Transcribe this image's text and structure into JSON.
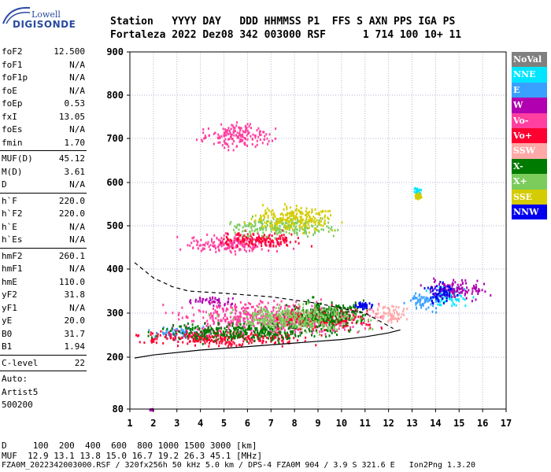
{
  "logo": {
    "line1": "Lowell",
    "line2": "DIGISONDE"
  },
  "header": {
    "line1": "Station   YYYY DAY   DDD HHMMSS P1  FFS S AXN PPS IGA PS",
    "line2": "Fortaleza 2022 Dez08 342 003000 RSF      1 714 100 10+ 11"
  },
  "params": [
    {
      "label": "foF2",
      "value": "12.500"
    },
    {
      "label": "foF1",
      "value": "N/A"
    },
    {
      "label": "foF1p",
      "value": "N/A"
    },
    {
      "label": "foE",
      "value": "N/A"
    },
    {
      "label": "foEp",
      "value": "0.53"
    },
    {
      "label": "fxI",
      "value": "13.05"
    },
    {
      "label": "foEs",
      "value": "N/A"
    },
    {
      "label": "fmin",
      "value": "1.70"
    },
    {
      "sep": true
    },
    {
      "label": "MUF(D)",
      "value": "45.12"
    },
    {
      "label": "M(D)",
      "value": "3.61"
    },
    {
      "label": "D",
      "value": "N/A"
    },
    {
      "sep": true
    },
    {
      "label": "h`F",
      "value": "220.0"
    },
    {
      "label": "h`F2",
      "value": "220.0"
    },
    {
      "label": "h`E",
      "value": "N/A"
    },
    {
      "label": "h`Es",
      "value": "N/A"
    },
    {
      "sep": true
    },
    {
      "label": "hmF2",
      "value": "260.1"
    },
    {
      "label": "hmF1",
      "value": "N/A"
    },
    {
      "label": "hmE",
      "value": "110.0"
    },
    {
      "label": "yF2",
      "value": "31.8"
    },
    {
      "label": "yF1",
      "value": "N/A"
    },
    {
      "label": "yE",
      "value": "20.0"
    },
    {
      "label": "B0",
      "value": "31.7"
    },
    {
      "label": "B1",
      "value": "1.94"
    },
    {
      "sep": true
    },
    {
      "label": "C-level",
      "value": "22"
    },
    {
      "sep": true
    },
    {
      "text": "Auto:"
    },
    {
      "text": "Artist5"
    },
    {
      "text": "500200"
    }
  ],
  "legend": [
    {
      "label": "NoVal",
      "color": "#808080"
    },
    {
      "label": "NNE",
      "color": "#00e5ff"
    },
    {
      "label": "E",
      "color": "#3aa0ff"
    },
    {
      "label": "W",
      "color": "#b000b0"
    },
    {
      "label": "Vo-",
      "color": "#ff40a0"
    },
    {
      "label": "Vo+",
      "color": "#ff0030"
    },
    {
      "label": "SSW",
      "color": "#ffa8a8"
    },
    {
      "label": "X-",
      "color": "#007a00"
    },
    {
      "label": "X+",
      "color": "#7ccc5c"
    },
    {
      "label": "SSE",
      "color": "#d4cc00"
    },
    {
      "label": "NNW",
      "color": "#0000ee"
    }
  ],
  "chart_data": {
    "type": "scatter",
    "xlim": [
      1,
      17
    ],
    "ylim": [
      80,
      900
    ],
    "x_ticks": [
      1,
      2,
      3,
      4,
      5,
      6,
      7,
      8,
      9,
      10,
      11,
      12,
      13,
      14,
      15,
      16,
      17
    ],
    "y_ticks": [
      80,
      200,
      300,
      400,
      500,
      600,
      700,
      800,
      900
    ],
    "grid": true,
    "legend_position": "right",
    "series": [
      {
        "name": "NoVal",
        "color": "#808080",
        "clusters": []
      },
      {
        "name": "NNE",
        "color": "#00e5ff",
        "clusters": [
          [
            14.5,
            340,
            1.2,
            30
          ],
          [
            13.2,
            580,
            0.2,
            12
          ]
        ]
      },
      {
        "name": "E",
        "color": "#3aa0ff",
        "clusters": [
          [
            3.0,
            260,
            1.6,
            18
          ],
          [
            13.5,
            330,
            1.0,
            30
          ]
        ]
      },
      {
        "name": "W",
        "color": "#b000b0",
        "clusters": [
          [
            4.5,
            330,
            1.4,
            15
          ],
          [
            1.9,
            80,
            0.1,
            3
          ],
          [
            14.8,
            355,
            1.8,
            30
          ]
        ]
      },
      {
        "name": "Vo-",
        "color": "#ff40a0",
        "clusters": [
          [
            5.5,
            460,
            3.0,
            30
          ],
          [
            5.5,
            710,
            2.0,
            40
          ],
          [
            7.0,
            290,
            5.5,
            50
          ]
        ]
      },
      {
        "name": "Vo+",
        "color": "#ff0030",
        "clusters": [
          [
            5.0,
            245,
            5.0,
            25
          ],
          [
            6.5,
            470,
            2.5,
            25
          ],
          [
            9.0,
            290,
            3.0,
            35
          ]
        ]
      },
      {
        "name": "SSW",
        "color": "#ffa8a8",
        "clusters": [
          [
            12.0,
            300,
            1.0,
            30
          ]
        ]
      },
      {
        "name": "X-",
        "color": "#007a00",
        "clusters": [
          [
            6.0,
            260,
            5.0,
            30
          ],
          [
            9.5,
            300,
            2.5,
            40
          ]
        ]
      },
      {
        "name": "X+",
        "color": "#7ccc5c",
        "clusters": [
          [
            7.5,
            500,
            3.0,
            30
          ],
          [
            8.0,
            290,
            4.0,
            40
          ]
        ]
      },
      {
        "name": "SSE",
        "color": "#d4cc00",
        "clusters": [
          [
            8.0,
            520,
            2.5,
            40
          ],
          [
            13.2,
            570,
            0.2,
            10
          ]
        ]
      },
      {
        "name": "NNW",
        "color": "#0000ee",
        "clusters": [
          [
            14.2,
            350,
            0.9,
            35
          ],
          [
            10.9,
            320,
            0.6,
            10
          ]
        ]
      }
    ],
    "profile_solid": [
      [
        1.2,
        198
      ],
      [
        2.0,
        205
      ],
      [
        4.0,
        216
      ],
      [
        6.0,
        224
      ],
      [
        8.0,
        232
      ],
      [
        10.0,
        240
      ],
      [
        11.0,
        246
      ],
      [
        12.0,
        255
      ],
      [
        12.5,
        262
      ]
    ],
    "profile_dashed": [
      [
        1.2,
        415
      ],
      [
        2.0,
        380
      ],
      [
        2.8,
        360
      ],
      [
        3.5,
        350
      ],
      [
        5.0,
        345
      ],
      [
        7.0,
        337
      ],
      [
        9.0,
        322
      ],
      [
        11.0,
        300
      ],
      [
        12.2,
        265
      ]
    ]
  },
  "footer": {
    "line1": "D     100  200  400  600  800 1000 1500 3000 [km]",
    "line2": "MUF  12.9 13.1 13.8 15.0 16.7 19.2 26.3 45.1 [MHz]",
    "line3": "FZA0M_2022342003000.RSF / 320fx256h 50 kHz 5.0 km / DPS-4 FZA0M 904 / 3.9 S 321.6 E   Ion2Png 1.3.20"
  }
}
